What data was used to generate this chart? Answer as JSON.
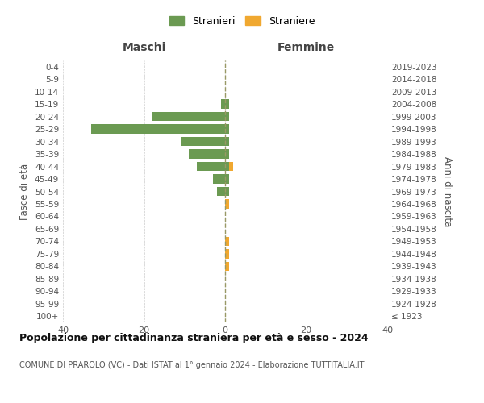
{
  "age_groups": [
    "100+",
    "95-99",
    "90-94",
    "85-89",
    "80-84",
    "75-79",
    "70-74",
    "65-69",
    "60-64",
    "55-59",
    "50-54",
    "45-49",
    "40-44",
    "35-39",
    "30-34",
    "25-29",
    "20-24",
    "15-19",
    "10-14",
    "5-9",
    "0-4"
  ],
  "birth_years": [
    "≤ 1923",
    "1924-1928",
    "1929-1933",
    "1934-1938",
    "1939-1943",
    "1944-1948",
    "1949-1953",
    "1954-1958",
    "1959-1963",
    "1964-1968",
    "1969-1973",
    "1974-1978",
    "1979-1983",
    "1984-1988",
    "1989-1993",
    "1994-1998",
    "1999-2003",
    "2004-2008",
    "2009-2013",
    "2014-2018",
    "2019-2023"
  ],
  "males_stranieri": [
    0,
    0,
    0,
    0,
    0,
    0,
    0,
    0,
    0,
    0,
    2,
    3,
    7,
    9,
    11,
    33,
    18,
    1,
    0,
    0,
    0
  ],
  "males_straniere": [
    0,
    0,
    0,
    0,
    0,
    0,
    0,
    0,
    0,
    0,
    0,
    0,
    0,
    0,
    0,
    0,
    0,
    0,
    0,
    0,
    0
  ],
  "females_stranieri": [
    0,
    0,
    0,
    0,
    0,
    0,
    0,
    0,
    0,
    0,
    1,
    1,
    1,
    1,
    1,
    1,
    1,
    1,
    0,
    0,
    0
  ],
  "females_straniere": [
    0,
    0,
    0,
    0,
    1,
    1,
    1,
    0,
    0,
    1,
    0,
    0,
    1,
    0,
    0,
    0,
    0,
    0,
    0,
    0,
    0
  ],
  "color_stranieri": "#6b9a52",
  "color_straniere": "#f0a830",
  "title": "Popolazione per cittadinanza straniera per età e sesso - 2024",
  "subtitle": "COMUNE DI PRAROLO (VC) - Dati ISTAT al 1° gennaio 2024 - Elaborazione TUTTITALIA.IT",
  "xlabel_left": "Maschi",
  "xlabel_right": "Femmine",
  "ylabel_left": "Fasce di età",
  "ylabel_right": "Anni di nascita",
  "xmax": 40,
  "legend_stranieri": "Stranieri",
  "legend_straniere": "Straniere",
  "background_color": "#ffffff",
  "grid_color": "#cccccc"
}
